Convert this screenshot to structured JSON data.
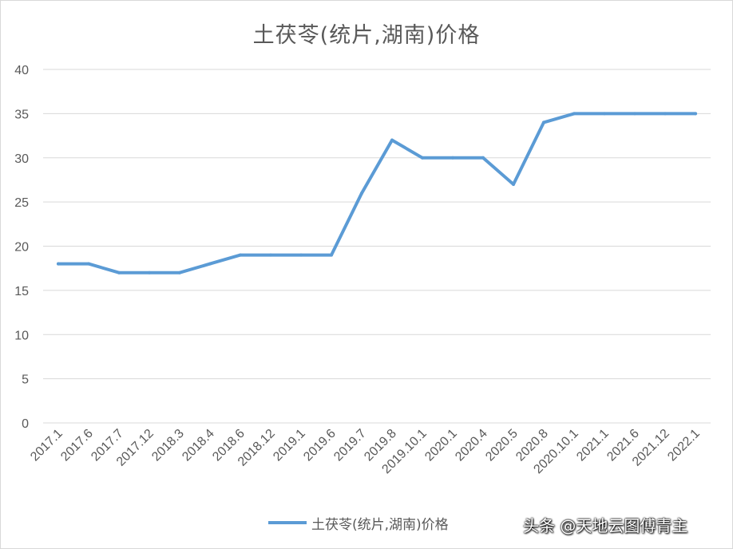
{
  "chart_data": {
    "type": "line",
    "title": "土茯苓(统片,湖南)价格",
    "xlabel": "",
    "ylabel": "",
    "ylim": [
      0,
      40
    ],
    "yticks": [
      0,
      5,
      10,
      15,
      20,
      25,
      30,
      35,
      40
    ],
    "grid": true,
    "legend_position": "bottom",
    "categories": [
      "2017.1",
      "2017.6",
      "2017.7",
      "2017.12",
      "2018.3",
      "2018.4",
      "2018.6",
      "2018.12",
      "2019.1",
      "2019.6",
      "2019.7",
      "2019.8",
      "2019.10.1",
      "2020.1",
      "2020.4",
      "2020.5",
      "2020.8",
      "2020.10.1",
      "2021.1",
      "2021.6",
      "2021.12",
      "2022.1"
    ],
    "series": [
      {
        "name": "土茯苓(统片,湖南)价格",
        "color": "#5b9bd5",
        "values": [
          18,
          18,
          17,
          17,
          17,
          18,
          19,
          19,
          19,
          19,
          26,
          32,
          30,
          30,
          30,
          27,
          34,
          35,
          35,
          35,
          35,
          35
        ]
      }
    ]
  },
  "watermark": "头条 @天地云图傅青主"
}
